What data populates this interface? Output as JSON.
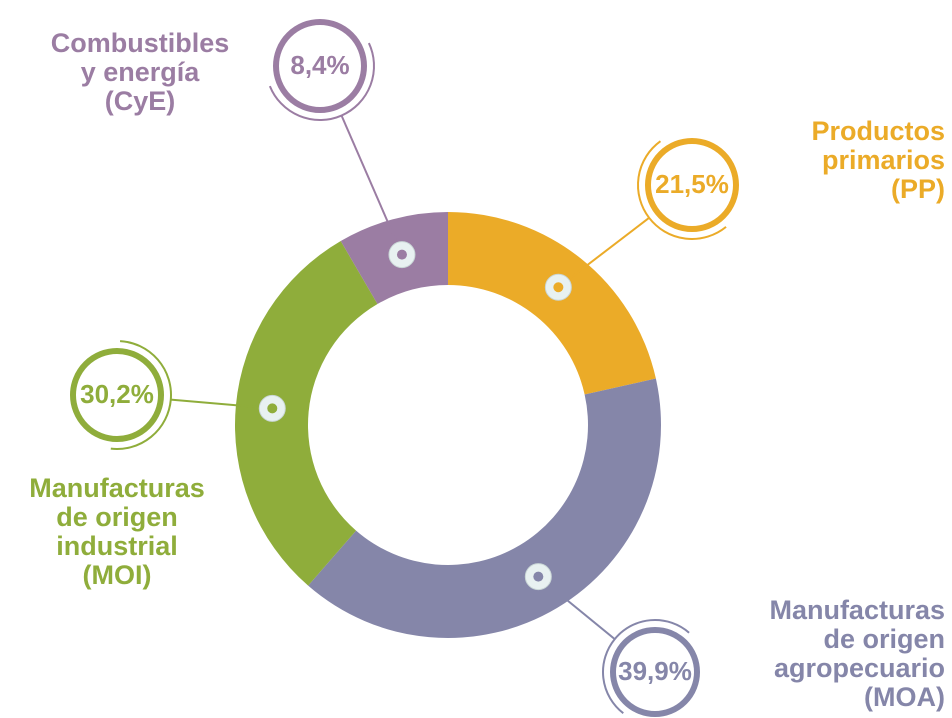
{
  "chart_data": {
    "type": "pie",
    "donut": true,
    "categories": [
      [
        "Productos",
        "primarios",
        "(PP)"
      ],
      [
        "Manufacturas",
        "de origen",
        "agropecuario",
        "(MOA)"
      ],
      [
        "Manufacturas",
        "de origen",
        "industrial",
        "(MOI)"
      ],
      [
        "Combustibles",
        "y energía",
        "(CyE)"
      ]
    ],
    "values": [
      21.5,
      39.9,
      30.2,
      8.4
    ],
    "value_labels": [
      "21,5%",
      "39,9%",
      "30,2%",
      "8,4%"
    ],
    "colors": [
      "#ebab28",
      "#8586a9",
      "#8fad3b",
      "#9b7da3"
    ]
  }
}
